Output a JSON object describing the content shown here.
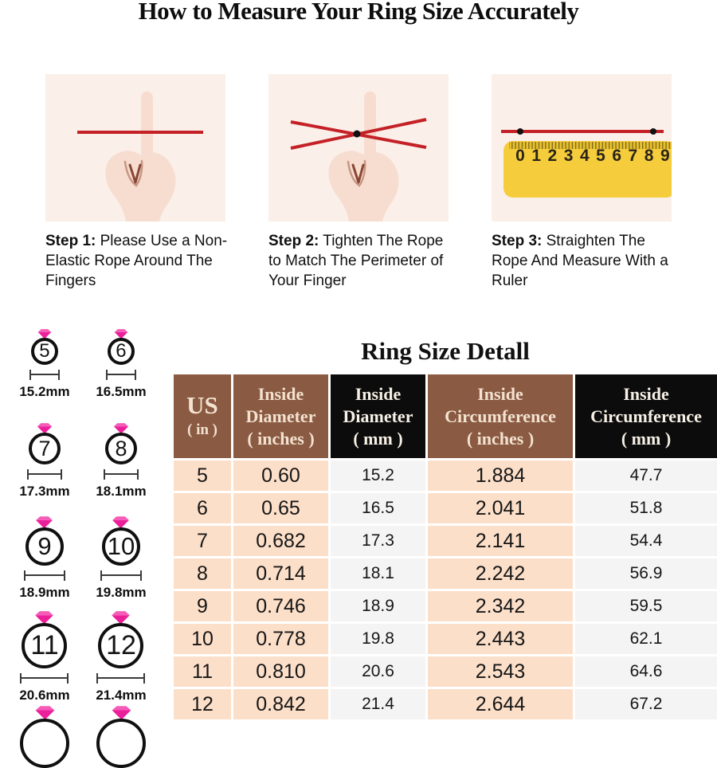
{
  "page": {
    "title": "How to Measure Your Ring Size Accurately"
  },
  "steps": [
    {
      "label": "Step 1:",
      "text": " Please Use a Non-Elastic Rope Around The Fingers",
      "image": "hand-with-rope"
    },
    {
      "label": "Step 2:",
      "text": " Tighten The Rope to Match The Perimeter of Your Finger",
      "image": "hand-with-tightened-rope"
    },
    {
      "label": "Step 3:",
      "text": " Straighten The Rope And Measure With a Ruler",
      "image": "ruler-with-straightened-rope"
    }
  ],
  "ruler": {
    "numbers": [
      "0",
      "1",
      "2",
      "3",
      "4",
      "5",
      "6",
      "7",
      "8",
      "9"
    ]
  },
  "ring_guide": {
    "rings": [
      {
        "size": "5",
        "diameter_label": "15.2mm"
      },
      {
        "size": "6",
        "diameter_label": "16.5mm"
      },
      {
        "size": "7",
        "diameter_label": "17.3mm"
      },
      {
        "size": "8",
        "diameter_label": "18.1mm"
      },
      {
        "size": "9",
        "diameter_label": "18.9mm"
      },
      {
        "size": "10",
        "diameter_label": "19.8mm"
      },
      {
        "size": "11",
        "diameter_label": "20.6mm"
      },
      {
        "size": "12",
        "diameter_label": "21.4mm"
      }
    ],
    "partial_rings_at_bottom": 2
  },
  "table": {
    "title": "Ring Size Detall",
    "columns": [
      {
        "lines": [
          "US",
          "( in )"
        ],
        "theme": "brown"
      },
      {
        "lines": [
          "Inside",
          "Diameter",
          "( inches )"
        ],
        "theme": "brown"
      },
      {
        "lines": [
          "Inside",
          "Diameter",
          "( mm )"
        ],
        "theme": "black"
      },
      {
        "lines": [
          "Inside",
          "Circumference",
          "( inches )"
        ],
        "theme": "brown"
      },
      {
        "lines": [
          "Inside",
          "Circumference",
          "( mm )"
        ],
        "theme": "black"
      }
    ],
    "rows": [
      [
        "5",
        "0.60",
        "15.2",
        "1.884",
        "47.7"
      ],
      [
        "6",
        "0.65",
        "16.5",
        "2.041",
        "51.8"
      ],
      [
        "7",
        "0.682",
        "17.3",
        "2.141",
        "54.4"
      ],
      [
        "8",
        "0.714",
        "18.1",
        "2.242",
        "56.9"
      ],
      [
        "9",
        "0.746",
        "18.9",
        "2.342",
        "59.5"
      ],
      [
        "10",
        "0.778",
        "19.8",
        "2.443",
        "62.1"
      ],
      [
        "11",
        "0.810",
        "20.6",
        "2.543",
        "64.6"
      ],
      [
        "12",
        "0.842",
        "21.4",
        "2.644",
        "67.2"
      ]
    ]
  },
  "colors": {
    "header_brown": "#8a5a42",
    "header_black": "#0c0c0c",
    "cell_peach": "#fcdfc9",
    "cell_gray": "#f4f4f4",
    "photo_background": "#fbefe9",
    "rope_red": "#c42127",
    "ruler_yellow": "#f5cd3c",
    "diamond_pink": "#ec1f9b"
  }
}
